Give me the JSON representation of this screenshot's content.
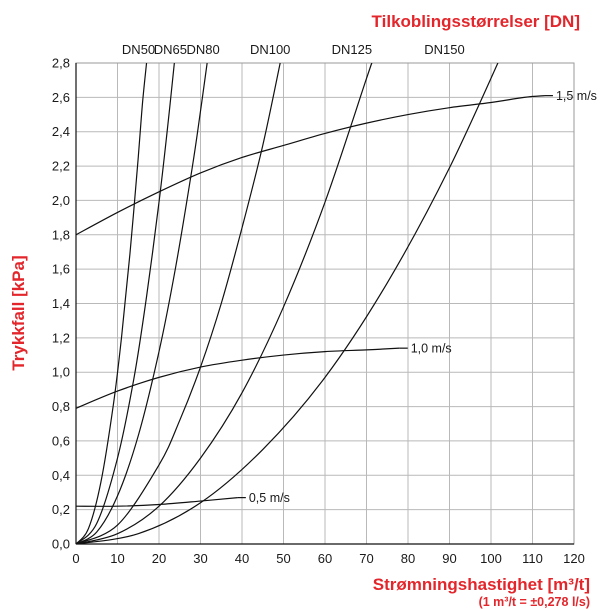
{
  "chart_data": {
    "type": "line",
    "title": "Tilkoblingsstørrelser [DN]",
    "xlabel": "Strømningshastighet [m³/t]",
    "xlabel_note": "(1 m³/t = ±0,278 l/s)",
    "ylabel": "Trykkfall [kPa]",
    "xlim": [
      0,
      120
    ],
    "ylim": [
      0,
      2.8
    ],
    "x_ticks": [
      0,
      10,
      20,
      30,
      40,
      50,
      60,
      70,
      80,
      90,
      100,
      110,
      120
    ],
    "x_tick_labels": [
      "0",
      "10",
      "20",
      "30",
      "40",
      "50",
      "60",
      "70",
      "80",
      "90",
      "100",
      "110",
      "120"
    ],
    "y_ticks": [
      0,
      0.2,
      0.4,
      0.6,
      0.8,
      1.0,
      1.2,
      1.4,
      1.6,
      1.8,
      2.0,
      2.2,
      2.4,
      2.6,
      2.8
    ],
    "y_tick_labels": [
      "0,0",
      "0,2",
      "0,4",
      "0,6",
      "0,8",
      "1,0",
      "1,2",
      "1,4",
      "1,6",
      "1,8",
      "2,0",
      "2,2",
      "2,4",
      "2,6",
      "2,8"
    ],
    "grid": true,
    "dn_series": [
      {
        "name": "DN50",
        "points": [
          [
            0,
            0
          ],
          [
            3,
            0.09
          ],
          [
            6,
            0.36
          ],
          [
            9,
            0.81
          ],
          [
            11,
            1.21
          ],
          [
            13,
            1.69
          ],
          [
            15,
            2.25
          ],
          [
            16,
            2.56
          ],
          [
            17,
            2.8
          ]
        ]
      },
      {
        "name": "DN65",
        "points": [
          [
            0,
            0
          ],
          [
            5,
            0.12
          ],
          [
            10,
            0.5
          ],
          [
            14,
            0.97
          ],
          [
            17,
            1.44
          ],
          [
            20,
            1.99
          ],
          [
            22,
            2.41
          ],
          [
            23.7,
            2.8
          ]
        ]
      },
      {
        "name": "DN80",
        "points": [
          [
            0,
            0
          ],
          [
            5,
            0.07
          ],
          [
            10,
            0.28
          ],
          [
            15,
            0.63
          ],
          [
            20,
            1.12
          ],
          [
            24,
            1.61
          ],
          [
            28,
            2.19
          ],
          [
            30,
            2.52
          ],
          [
            31.6,
            2.8
          ]
        ]
      },
      {
        "name": "DN100",
        "points": [
          [
            0,
            0
          ],
          [
            10,
            0.11
          ],
          [
            20,
            0.46
          ],
          [
            25,
            0.72
          ],
          [
            30,
            1.03
          ],
          [
            35,
            1.4
          ],
          [
            40,
            1.84
          ],
          [
            45,
            2.32
          ],
          [
            49.2,
            2.8
          ]
        ]
      },
      {
        "name": "DN125",
        "points": [
          [
            0,
            0
          ],
          [
            10,
            0.06
          ],
          [
            20,
            0.22
          ],
          [
            30,
            0.5
          ],
          [
            40,
            0.88
          ],
          [
            50,
            1.38
          ],
          [
            60,
            1.99
          ],
          [
            70,
            2.71
          ],
          [
            71.3,
            2.8
          ]
        ]
      },
      {
        "name": "DN150",
        "points": [
          [
            0,
            0
          ],
          [
            15,
            0.06
          ],
          [
            30,
            0.24
          ],
          [
            45,
            0.55
          ],
          [
            60,
            0.97
          ],
          [
            75,
            1.52
          ],
          [
            90,
            2.19
          ],
          [
            105,
            2.98
          ]
        ]
      }
    ],
    "velocity_series": [
      {
        "name": "1,5 m/s",
        "points": [
          [
            0,
            1.8
          ],
          [
            10,
            1.93
          ],
          [
            20,
            2.05
          ],
          [
            30,
            2.16
          ],
          [
            40,
            2.25
          ],
          [
            50,
            2.32
          ],
          [
            60,
            2.39
          ],
          [
            70,
            2.45
          ],
          [
            80,
            2.5
          ],
          [
            90,
            2.54
          ],
          [
            100,
            2.57
          ],
          [
            108,
            2.6
          ],
          [
            113,
            2.61
          ]
        ]
      },
      {
        "name": "1,0 m/s",
        "points": [
          [
            0,
            0.79
          ],
          [
            10,
            0.89
          ],
          [
            20,
            0.97
          ],
          [
            30,
            1.03
          ],
          [
            40,
            1.07
          ],
          [
            50,
            1.1
          ],
          [
            60,
            1.12
          ],
          [
            70,
            1.13
          ],
          [
            78,
            1.14
          ]
        ]
      },
      {
        "name": "0,5 m/s",
        "points": [
          [
            0,
            0.22
          ],
          [
            10,
            0.22
          ],
          [
            20,
            0.23
          ],
          [
            30,
            0.25
          ],
          [
            39,
            0.27
          ]
        ]
      }
    ]
  }
}
